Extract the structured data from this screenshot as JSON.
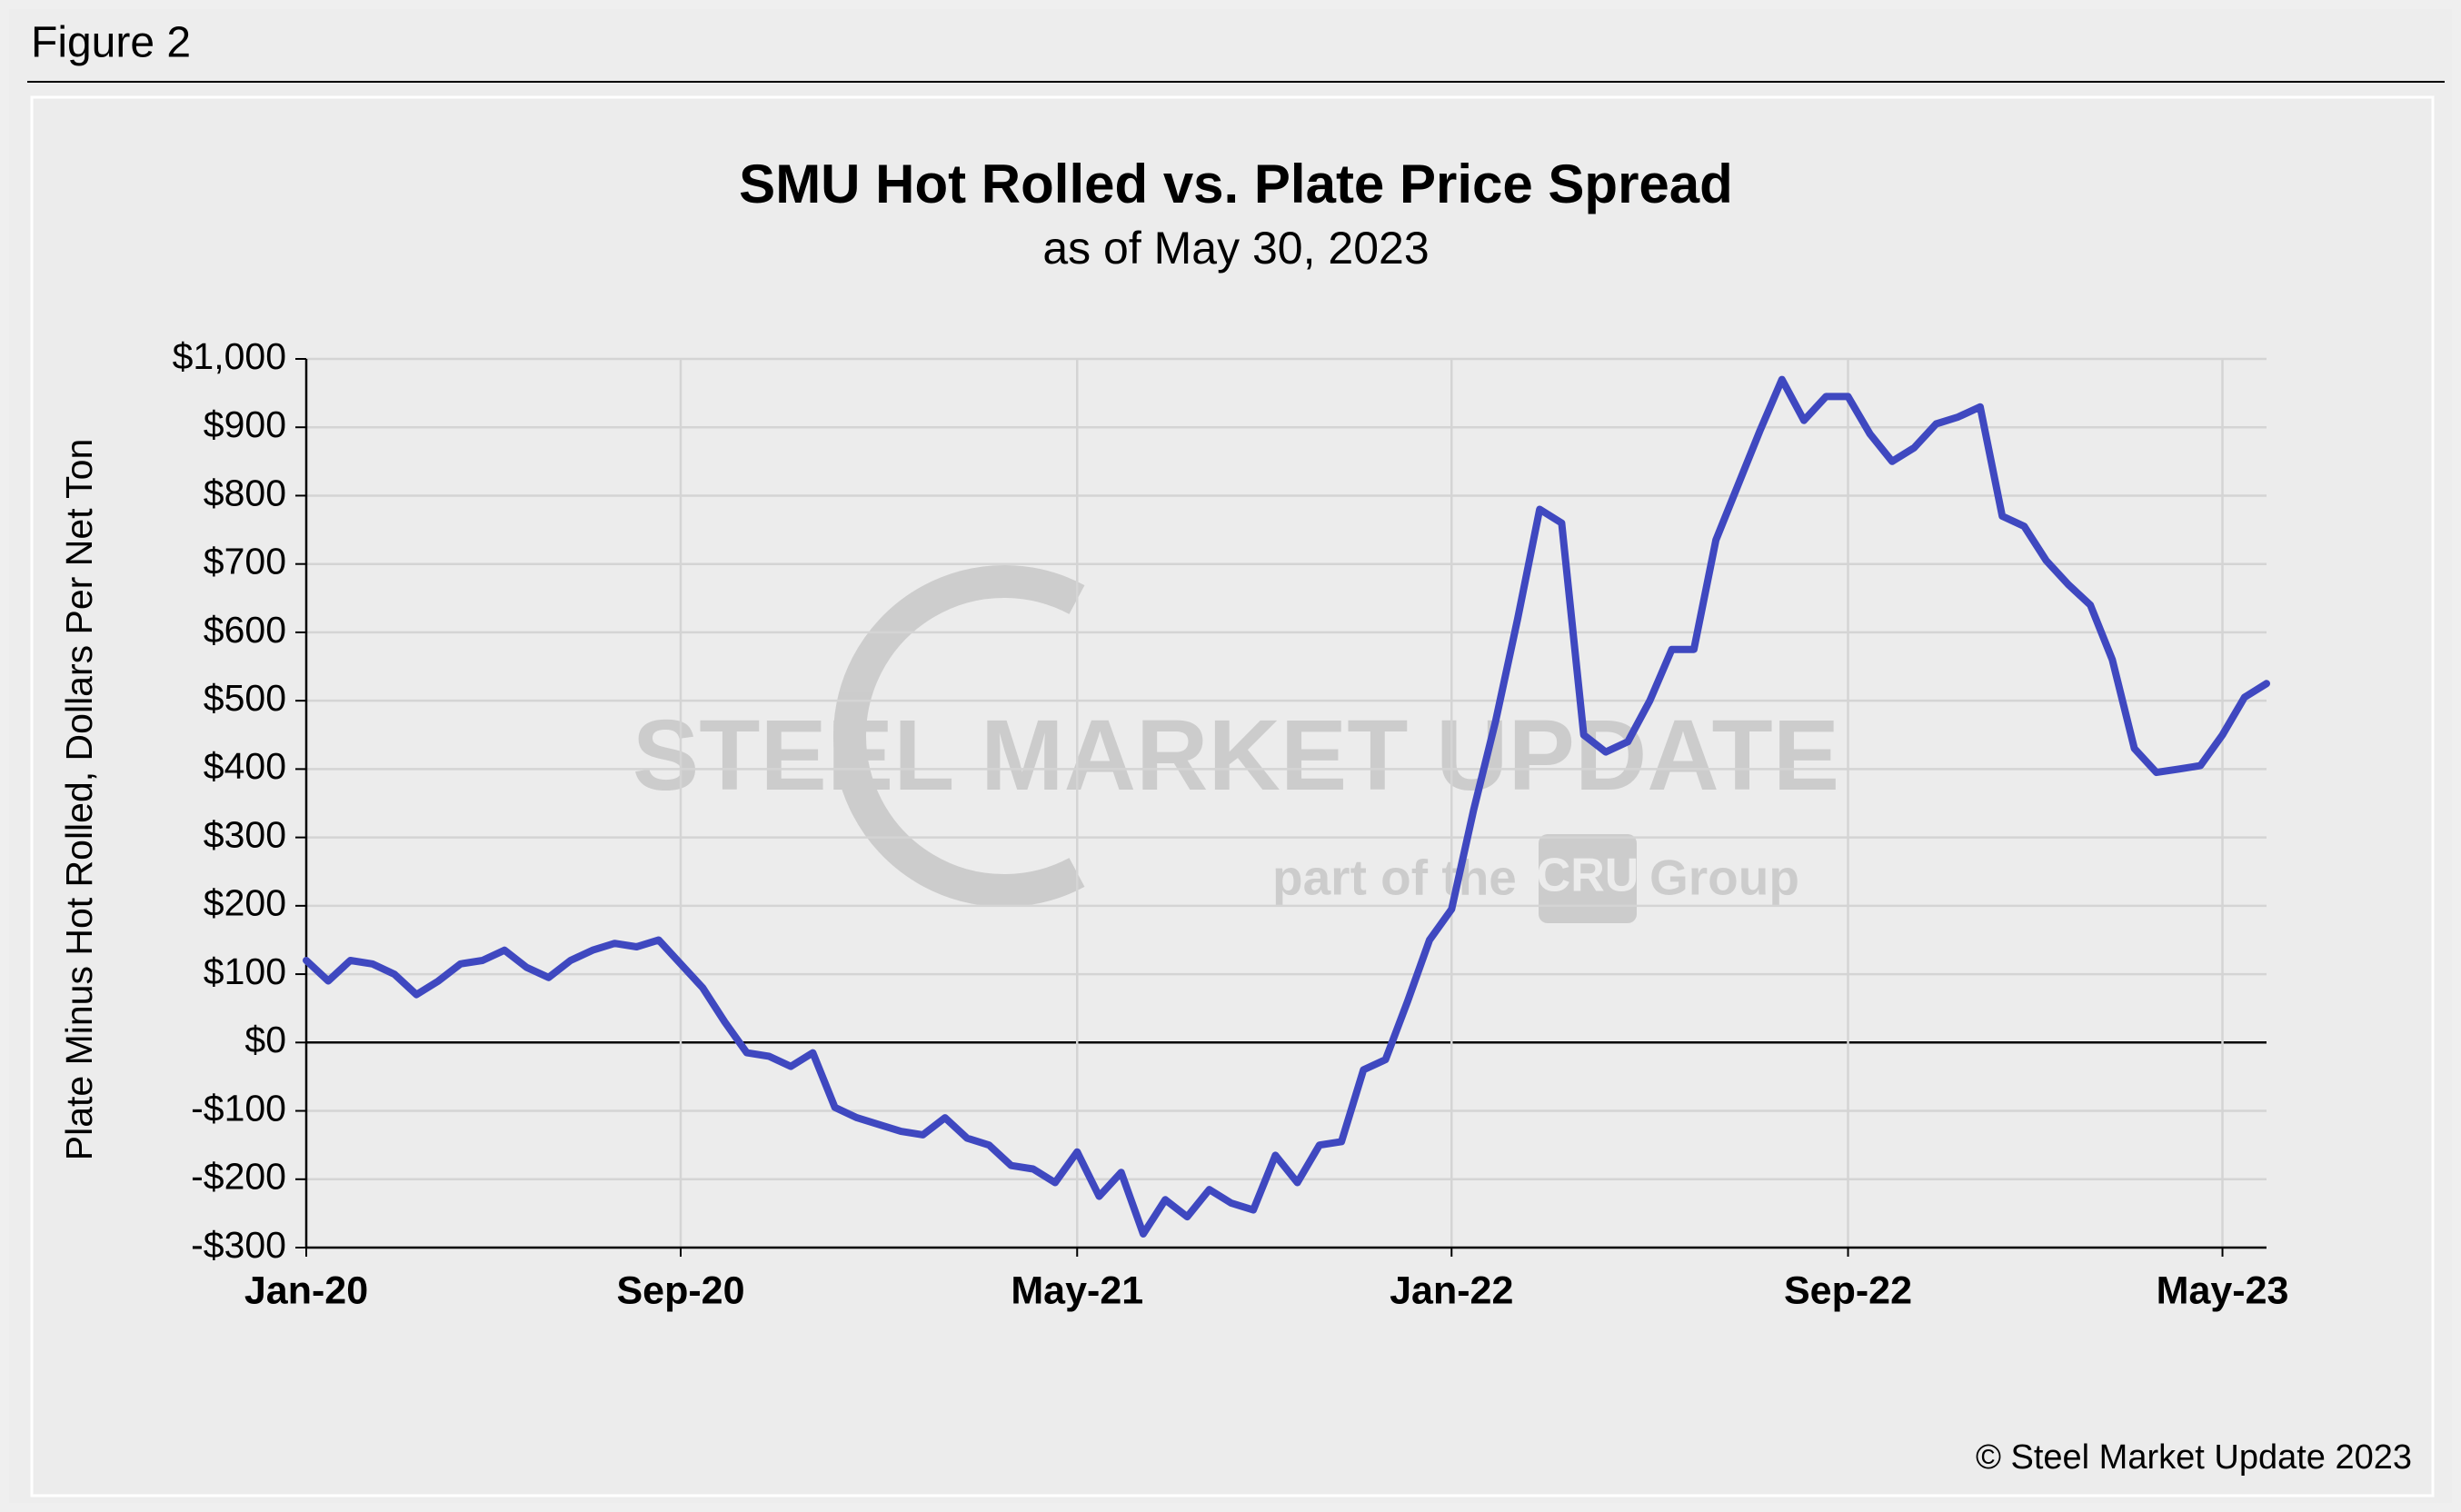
{
  "header": "Figure 2",
  "chart_data": {
    "type": "line",
    "title": "SMU Hot Rolled vs. Plate Price Spread",
    "subtitle": "as of May 30, 2023",
    "y_label": "Plate Minus Hot Rolled, Dollars Per Net Ton",
    "categories": [
      "Jan-20",
      null,
      null,
      null,
      null,
      null,
      null,
      null,
      null,
      null,
      null,
      null,
      null,
      null,
      null,
      null,
      null,
      "Sep-20",
      null,
      null,
      null,
      null,
      null,
      null,
      null,
      null,
      null,
      null,
      null,
      null,
      null,
      null,
      null,
      null,
      null,
      "May-21",
      null,
      null,
      null,
      null,
      null,
      null,
      null,
      null,
      null,
      null,
      null,
      null,
      null,
      null,
      null,
      null,
      "Jan-22",
      null,
      null,
      null,
      null,
      null,
      null,
      null,
      null,
      null,
      null,
      null,
      null,
      null,
      null,
      null,
      null,
      null,
      "Sep-22",
      null,
      null,
      null,
      null,
      null,
      null,
      null,
      null,
      null,
      null,
      null,
      null,
      null,
      null,
      null,
      null,
      "May-23",
      null,
      null
    ],
    "values": [
      120,
      90,
      120,
      115,
      100,
      70,
      90,
      115,
      120,
      135,
      110,
      95,
      120,
      135,
      145,
      140,
      150,
      115,
      80,
      30,
      -15,
      -20,
      -35,
      -15,
      -95,
      -110,
      -120,
      -130,
      -135,
      -110,
      -140,
      -150,
      -180,
      -185,
      -205,
      -160,
      -225,
      -190,
      -280,
      -230,
      -255,
      -215,
      -235,
      -245,
      -165,
      -205,
      -150,
      -145,
      -40,
      -25,
      60,
      150,
      195,
      340,
      470,
      620,
      780,
      760,
      450,
      425,
      440,
      500,
      575,
      575,
      735,
      815,
      895,
      970,
      910,
      945,
      945,
      890,
      850,
      870,
      905,
      915,
      930,
      770,
      755,
      705,
      670,
      640,
      560,
      430,
      395,
      400,
      405,
      450,
      505,
      525
    ],
    "color": "#3f48c0",
    "ylim": [
      -300,
      1000
    ],
    "yticks": [
      {
        "value": -300,
        "label": "-$300"
      },
      {
        "value": -200,
        "label": "-$200"
      },
      {
        "value": -100,
        "label": "-$100"
      },
      {
        "value": 0,
        "label": "$0"
      },
      {
        "value": 100,
        "label": "$100"
      },
      {
        "value": 200,
        "label": "$200"
      },
      {
        "value": 300,
        "label": "$300"
      },
      {
        "value": 400,
        "label": "$400"
      },
      {
        "value": 500,
        "label": "$500"
      },
      {
        "value": 600,
        "label": "$600"
      },
      {
        "value": 700,
        "label": "$700"
      },
      {
        "value": 800,
        "label": "$800"
      },
      {
        "value": 900,
        "label": "$900"
      },
      {
        "value": 1000,
        "label": "$1,000"
      }
    ],
    "grid": true
  },
  "watermark": {
    "brand": "STEEL MARKET UPDATE",
    "tagline_start": "part of the",
    "logo": "CRU",
    "tagline_end": "Group"
  },
  "footer": "© Steel Market Update 2023"
}
